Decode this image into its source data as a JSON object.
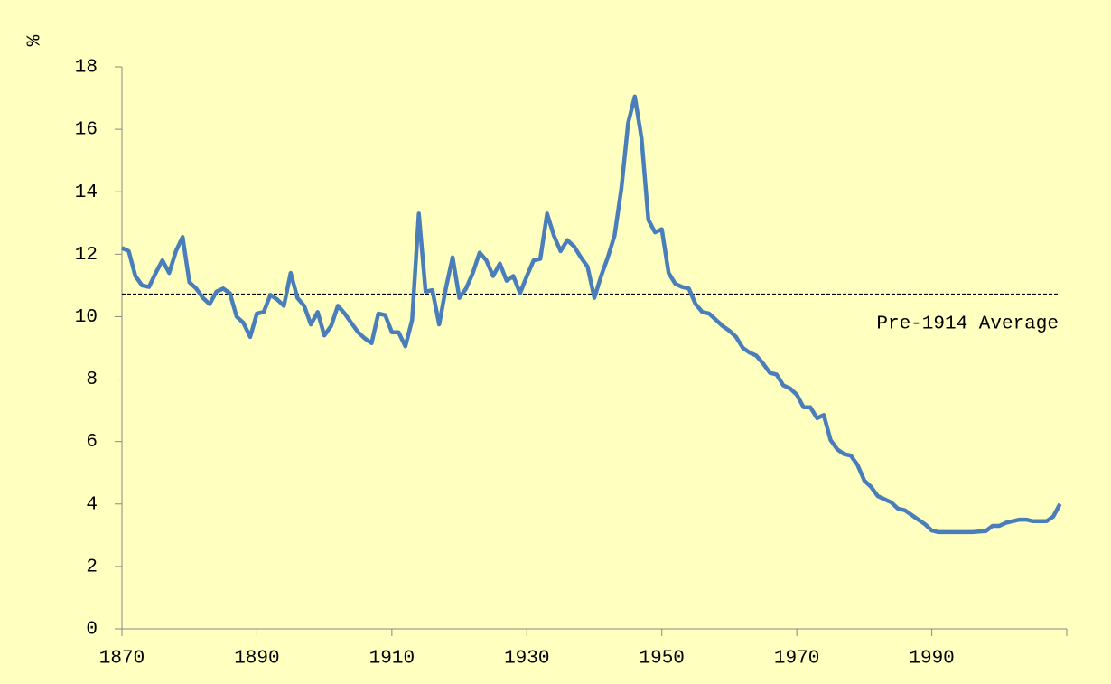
{
  "chart_data": {
    "type": "line",
    "ylabel": "%",
    "x": [
      1870,
      1871,
      1872,
      1873,
      1874,
      1875,
      1876,
      1877,
      1878,
      1879,
      1880,
      1881,
      1882,
      1883,
      1884,
      1885,
      1886,
      1887,
      1888,
      1889,
      1890,
      1891,
      1892,
      1893,
      1894,
      1895,
      1896,
      1897,
      1898,
      1899,
      1900,
      1901,
      1902,
      1903,
      1904,
      1905,
      1906,
      1907,
      1908,
      1909,
      1910,
      1911,
      1912,
      1913,
      1914,
      1915,
      1916,
      1917,
      1918,
      1919,
      1920,
      1921,
      1922,
      1923,
      1924,
      1925,
      1926,
      1927,
      1928,
      1929,
      1930,
      1931,
      1932,
      1933,
      1934,
      1935,
      1936,
      1937,
      1938,
      1939,
      1940,
      1941,
      1942,
      1943,
      1944,
      1945,
      1946,
      1947,
      1948,
      1949,
      1950,
      1951,
      1952,
      1953,
      1954,
      1955,
      1956,
      1957,
      1958,
      1959,
      1960,
      1961,
      1962,
      1963,
      1964,
      1965,
      1966,
      1967,
      1968,
      1969,
      1970,
      1971,
      1972,
      1973,
      1974,
      1975,
      1976,
      1977,
      1978,
      1979,
      1980,
      1981,
      1982,
      1983,
      1984,
      1985,
      1986,
      1987,
      1988,
      1989,
      1990,
      1991,
      1992,
      1993,
      1994,
      1995,
      1996,
      1997,
      1998,
      1999,
      2000,
      2001,
      2002,
      2003,
      2004,
      2005,
      2006,
      2007,
      2008,
      2009
    ],
    "series": [
      {
        "color": "#4a7ebb",
        "values": [
          12.2,
          12.1,
          11.3,
          11.0,
          10.95,
          11.4,
          11.8,
          11.4,
          12.1,
          12.55,
          11.1,
          10.9,
          10.6,
          10.4,
          10.8,
          10.9,
          10.75,
          10.0,
          9.8,
          9.35,
          10.1,
          10.15,
          10.7,
          10.55,
          10.35,
          11.4,
          10.6,
          10.35,
          9.75,
          10.15,
          9.4,
          9.7,
          10.35,
          10.1,
          9.8,
          9.5,
          9.3,
          9.15,
          10.1,
          10.05,
          9.5,
          9.5,
          9.05,
          9.9,
          13.3,
          10.8,
          10.85,
          9.75,
          10.9,
          11.9,
          10.6,
          10.9,
          11.4,
          12.05,
          11.8,
          11.3,
          11.7,
          11.15,
          11.3,
          10.75,
          11.3,
          11.8,
          11.85,
          13.3,
          12.6,
          12.1,
          12.45,
          12.25,
          11.9,
          11.6,
          10.6,
          11.3,
          11.9,
          12.6,
          14.1,
          16.2,
          17.05,
          15.7,
          13.1,
          12.7,
          12.8,
          11.4,
          11.05,
          10.95,
          10.9,
          10.4,
          10.15,
          10.1,
          9.9,
          9.7,
          9.55,
          9.35,
          9.0,
          8.85,
          8.75,
          8.5,
          8.2,
          8.15,
          7.8,
          7.7,
          7.5,
          7.1,
          7.1,
          6.75,
          6.85,
          6.05,
          5.75,
          5.6,
          5.55,
          5.25,
          4.75,
          4.55,
          4.25,
          4.15,
          4.05,
          3.85,
          3.8,
          3.65,
          3.5,
          3.35,
          3.15,
          3.1,
          3.1,
          3.1,
          3.1,
          3.1,
          3.1,
          3.12,
          3.13,
          3.3,
          3.3,
          3.4,
          3.45,
          3.5,
          3.5,
          3.45,
          3.45,
          3.45,
          3.6,
          4.0
        ]
      }
    ],
    "reference_line": {
      "label": "Pre-1914 Average",
      "value": 10.72
    },
    "xlim": [
      1870,
      2010
    ],
    "xticks": [
      1870,
      1890,
      1910,
      1930,
      1950,
      1970,
      1990
    ],
    "ylim": [
      0,
      18
    ],
    "yticks": [
      0,
      2,
      4,
      6,
      8,
      10,
      12,
      14,
      16,
      18
    ],
    "background": "#ffffc0"
  }
}
